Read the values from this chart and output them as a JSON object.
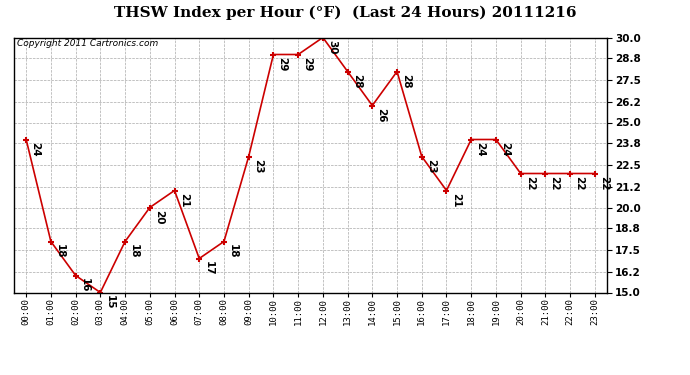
{
  "title": "THSW Index per Hour (°F)  (Last 24 Hours) 20111216",
  "copyright": "Copyright 2011 Cartronics.com",
  "hours": [
    "00:00",
    "01:00",
    "02:00",
    "03:00",
    "04:00",
    "05:00",
    "06:00",
    "07:00",
    "08:00",
    "09:00",
    "10:00",
    "11:00",
    "12:00",
    "13:00",
    "14:00",
    "15:00",
    "16:00",
    "17:00",
    "18:00",
    "19:00",
    "20:00",
    "21:00",
    "22:00",
    "23:00"
  ],
  "values": [
    24,
    18,
    16,
    15,
    18,
    20,
    21,
    17,
    18,
    23,
    29,
    29,
    30,
    28,
    26,
    28,
    23,
    21,
    24,
    24,
    22,
    22,
    22,
    22
  ],
  "ylim": [
    15.0,
    30.0
  ],
  "yticks": [
    15.0,
    16.2,
    17.5,
    18.8,
    20.0,
    21.2,
    22.5,
    23.8,
    25.0,
    26.2,
    27.5,
    28.8,
    30.0
  ],
  "line_color": "#cc0000",
  "marker_color": "#cc0000",
  "bg_color": "#ffffff",
  "plot_bg": "#ffffff",
  "grid_color": "#aaaaaa",
  "title_fontsize": 11,
  "copyright_fontsize": 6.5,
  "label_fontsize": 6.5,
  "annot_fontsize": 7.5
}
